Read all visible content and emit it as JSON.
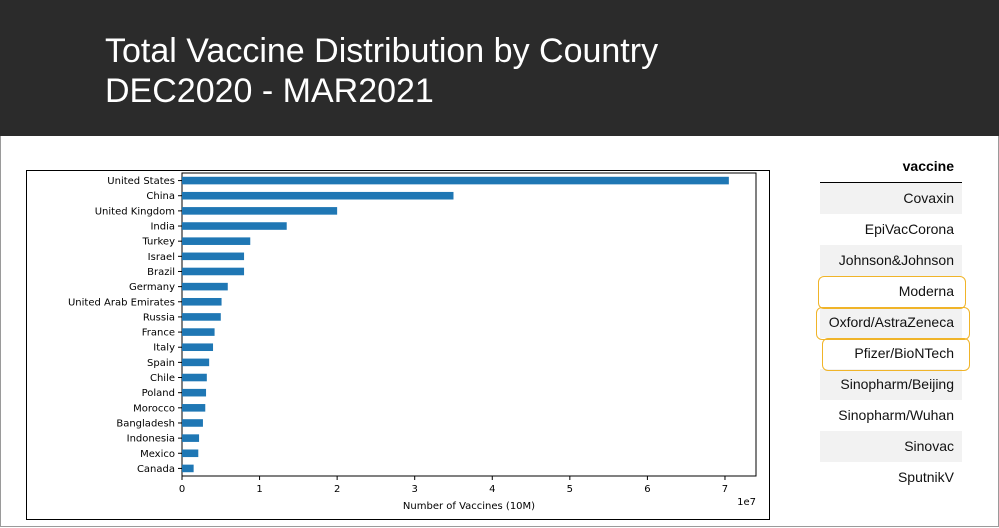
{
  "header": {
    "title_line1": "Total Vaccine Distribution by Country",
    "title_line2": "DEC2020 - MAR2021"
  },
  "chart_data": {
    "type": "bar",
    "orientation": "horizontal",
    "categories": [
      "Canada",
      "Mexico",
      "Indonesia",
      "Bangladesh",
      "Morocco",
      "Poland",
      "Chile",
      "Spain",
      "Italy",
      "France",
      "Russia",
      "United Arab Emirates",
      "Germany",
      "Brazil",
      "Israel",
      "Turkey",
      "India",
      "United Kingdom",
      "China",
      "United States"
    ],
    "values": [
      1500000,
      2100000,
      2200000,
      2700000,
      3000000,
      3100000,
      3200000,
      3500000,
      4000000,
      4200000,
      5000000,
      5100000,
      5900000,
      8000000,
      8000000,
      8800000,
      13500000,
      20000000,
      35000000,
      70500000
    ],
    "xlabel": "Number of Vaccines (10M)",
    "ylabel": "",
    "xlim": [
      0,
      74000000
    ],
    "xticks": [
      0,
      1,
      2,
      3,
      4,
      5,
      6,
      7
    ],
    "x_scale_label": "1e7",
    "bar_color": "#1f77b4",
    "grid": false
  },
  "table": {
    "header": "vaccine",
    "rows": [
      "Covaxin",
      "EpiVacCorona",
      "Johnson&Johnson",
      "Moderna",
      "Oxford/AstraZeneca",
      "Pfizer/BioNTech",
      "Sinopharm/Beijing",
      "Sinopharm/Wuhan",
      "Sinovac",
      "SputnikV"
    ],
    "highlighted": [
      "Moderna",
      "Oxford/AstraZeneca",
      "Pfizer/BioNTech"
    ],
    "highlight_color": "#f0b429"
  }
}
